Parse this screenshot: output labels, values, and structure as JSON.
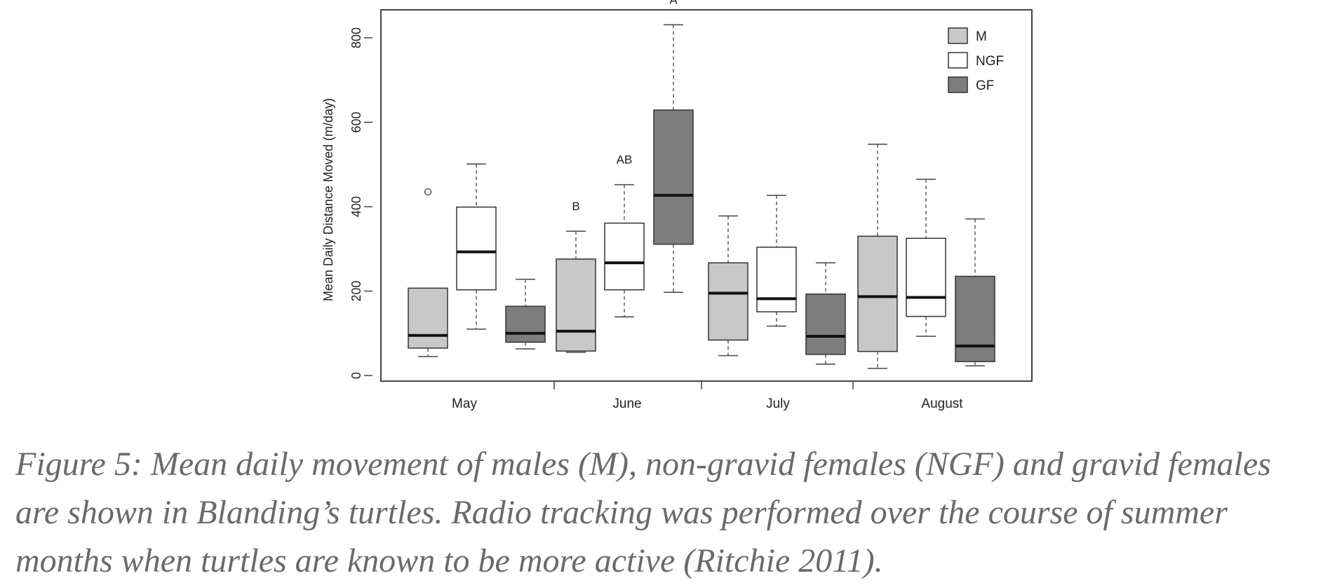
{
  "chart_data": {
    "type": "boxplot",
    "ylabel": "Mean Daily Distance Moved (m/day)",
    "xlabel": "",
    "ylim": [
      0,
      850
    ],
    "y_ticks": [
      "0",
      "200",
      "400",
      "600",
      "800"
    ],
    "y_tick_values": [
      0,
      200,
      400,
      600,
      800
    ],
    "categories": [
      "May",
      "June",
      "July",
      "August"
    ],
    "legend": {
      "position": "top-right",
      "entries": [
        {
          "name": "M",
          "color": "#c8c8c8"
        },
        {
          "name": "NGF",
          "color": "#ffffff"
        },
        {
          "name": "GF",
          "color": "#7d7d7d"
        }
      ]
    },
    "boxes": [
      {
        "month": "May",
        "group": "M",
        "min": 45,
        "q1": 65,
        "median": 95,
        "q3": 207,
        "max": 207,
        "outliers": [
          435
        ],
        "label": ""
      },
      {
        "month": "May",
        "group": "NGF",
        "min": 110,
        "q1": 203,
        "median": 293,
        "q3": 399,
        "max": 501,
        "outliers": [],
        "label": ""
      },
      {
        "month": "May",
        "group": "GF",
        "min": 63,
        "q1": 79,
        "median": 100,
        "q3": 164,
        "max": 228,
        "outliers": [],
        "label": ""
      },
      {
        "month": "June",
        "group": "M",
        "min": 55,
        "q1": 58,
        "median": 105,
        "q3": 276,
        "max": 342,
        "outliers": [],
        "label": "B"
      },
      {
        "month": "June",
        "group": "NGF",
        "min": 139,
        "q1": 203,
        "median": 267,
        "q3": 361,
        "max": 452,
        "outliers": [],
        "label": "AB"
      },
      {
        "month": "June",
        "group": "GF",
        "min": 197,
        "q1": 311,
        "median": 427,
        "q3": 629,
        "max": 831,
        "outliers": [],
        "label": "A"
      },
      {
        "month": "July",
        "group": "M",
        "min": 47,
        "q1": 84,
        "median": 195,
        "q3": 267,
        "max": 378,
        "outliers": [],
        "label": ""
      },
      {
        "month": "July",
        "group": "NGF",
        "min": 117,
        "q1": 151,
        "median": 182,
        "q3": 304,
        "max": 427,
        "outliers": [],
        "label": ""
      },
      {
        "month": "July",
        "group": "GF",
        "min": 27,
        "q1": 50,
        "median": 93,
        "q3": 193,
        "max": 267,
        "outliers": [],
        "label": ""
      },
      {
        "month": "August",
        "group": "M",
        "min": 17,
        "q1": 57,
        "median": 187,
        "q3": 330,
        "max": 548,
        "outliers": [],
        "label": ""
      },
      {
        "month": "August",
        "group": "NGF",
        "min": 93,
        "q1": 140,
        "median": 185,
        "q3": 325,
        "max": 465,
        "outliers": [],
        "label": ""
      },
      {
        "month": "August",
        "group": "GF",
        "min": 23,
        "q1": 33,
        "median": 70,
        "q3": 235,
        "max": 371,
        "outliers": [],
        "label": ""
      }
    ]
  },
  "caption": "Figure 5: Mean daily movement of males (M), non-gravid females (NGF) and gravid females are shown in Blanding’s turtles. Radio tracking was performed over the course of summer months when turtles are known to be more active (Ritchie 2011)."
}
